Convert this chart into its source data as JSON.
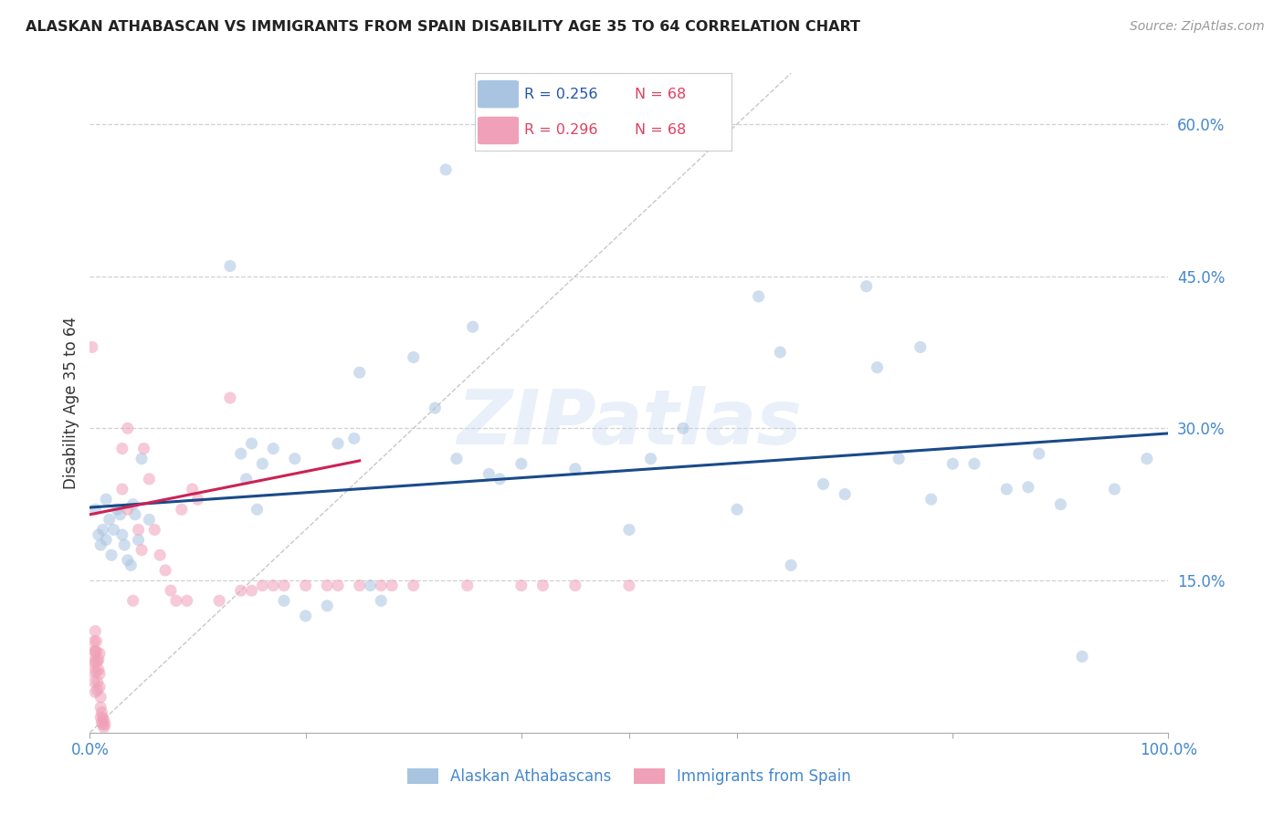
{
  "title": "ALASKAN ATHABASCAN VS IMMIGRANTS FROM SPAIN DISABILITY AGE 35 TO 64 CORRELATION CHART",
  "source": "Source: ZipAtlas.com",
  "ylabel": "Disability Age 35 to 64",
  "xlim": [
    0,
    1.0
  ],
  "ylim": [
    0,
    0.65
  ],
  "ytick_positions": [
    0.15,
    0.3,
    0.45,
    0.6
  ],
  "ytick_labels": [
    "15.0%",
    "30.0%",
    "45.0%",
    "60.0%"
  ],
  "watermark": "ZIPatlas",
  "blue_color": "#a8c4e0",
  "pink_color": "#f0a0b8",
  "blue_line_color": "#1a4a8a",
  "pink_line_color": "#cc2255",
  "diag_line_color": "#c8c8c8",
  "blue_R": "0.256",
  "blue_N": "68",
  "pink_R": "0.296",
  "pink_N": "68",
  "blue_scatter": [
    [
      0.005,
      0.22
    ],
    [
      0.008,
      0.195
    ],
    [
      0.01,
      0.185
    ],
    [
      0.012,
      0.2
    ],
    [
      0.015,
      0.23
    ],
    [
      0.015,
      0.19
    ],
    [
      0.018,
      0.21
    ],
    [
      0.02,
      0.175
    ],
    [
      0.022,
      0.2
    ],
    [
      0.025,
      0.22
    ],
    [
      0.028,
      0.215
    ],
    [
      0.03,
      0.195
    ],
    [
      0.032,
      0.185
    ],
    [
      0.035,
      0.17
    ],
    [
      0.038,
      0.165
    ],
    [
      0.04,
      0.225
    ],
    [
      0.042,
      0.215
    ],
    [
      0.045,
      0.19
    ],
    [
      0.048,
      0.27
    ],
    [
      0.055,
      0.21
    ],
    [
      0.13,
      0.46
    ],
    [
      0.14,
      0.275
    ],
    [
      0.145,
      0.25
    ],
    [
      0.15,
      0.285
    ],
    [
      0.155,
      0.22
    ],
    [
      0.16,
      0.265
    ],
    [
      0.17,
      0.28
    ],
    [
      0.18,
      0.13
    ],
    [
      0.19,
      0.27
    ],
    [
      0.2,
      0.115
    ],
    [
      0.22,
      0.125
    ],
    [
      0.23,
      0.285
    ],
    [
      0.245,
      0.29
    ],
    [
      0.25,
      0.355
    ],
    [
      0.26,
      0.145
    ],
    [
      0.27,
      0.13
    ],
    [
      0.3,
      0.37
    ],
    [
      0.32,
      0.32
    ],
    [
      0.33,
      0.555
    ],
    [
      0.34,
      0.27
    ],
    [
      0.355,
      0.4
    ],
    [
      0.37,
      0.255
    ],
    [
      0.38,
      0.25
    ],
    [
      0.4,
      0.265
    ],
    [
      0.45,
      0.26
    ],
    [
      0.5,
      0.2
    ],
    [
      0.52,
      0.27
    ],
    [
      0.55,
      0.3
    ],
    [
      0.6,
      0.22
    ],
    [
      0.62,
      0.43
    ],
    [
      0.64,
      0.375
    ],
    [
      0.65,
      0.165
    ],
    [
      0.68,
      0.245
    ],
    [
      0.7,
      0.235
    ],
    [
      0.72,
      0.44
    ],
    [
      0.73,
      0.36
    ],
    [
      0.75,
      0.27
    ],
    [
      0.77,
      0.38
    ],
    [
      0.78,
      0.23
    ],
    [
      0.8,
      0.265
    ],
    [
      0.82,
      0.265
    ],
    [
      0.85,
      0.24
    ],
    [
      0.87,
      0.242
    ],
    [
      0.88,
      0.275
    ],
    [
      0.9,
      0.225
    ],
    [
      0.92,
      0.075
    ],
    [
      0.95,
      0.24
    ],
    [
      0.98,
      0.27
    ]
  ],
  "pink_scatter": [
    [
      0.002,
      0.38
    ],
    [
      0.003,
      0.07
    ],
    [
      0.003,
      0.06
    ],
    [
      0.004,
      0.08
    ],
    [
      0.004,
      0.09
    ],
    [
      0.004,
      0.05
    ],
    [
      0.005,
      0.04
    ],
    [
      0.005,
      0.1
    ],
    [
      0.005,
      0.08
    ],
    [
      0.005,
      0.07
    ],
    [
      0.006,
      0.06
    ],
    [
      0.006,
      0.08
    ],
    [
      0.006,
      0.09
    ],
    [
      0.007,
      0.07
    ],
    [
      0.007,
      0.05
    ],
    [
      0.007,
      0.042
    ],
    [
      0.008,
      0.062
    ],
    [
      0.008,
      0.072
    ],
    [
      0.009,
      0.078
    ],
    [
      0.009,
      0.058
    ],
    [
      0.009,
      0.045
    ],
    [
      0.01,
      0.035
    ],
    [
      0.01,
      0.025
    ],
    [
      0.01,
      0.015
    ],
    [
      0.011,
      0.02
    ],
    [
      0.011,
      0.01
    ],
    [
      0.012,
      0.008
    ],
    [
      0.012,
      0.015
    ],
    [
      0.013,
      0.012
    ],
    [
      0.013,
      0.005
    ],
    [
      0.014,
      0.008
    ],
    [
      0.03,
      0.28
    ],
    [
      0.03,
      0.24
    ],
    [
      0.035,
      0.3
    ],
    [
      0.035,
      0.22
    ],
    [
      0.04,
      0.13
    ],
    [
      0.045,
      0.2
    ],
    [
      0.048,
      0.18
    ],
    [
      0.05,
      0.28
    ],
    [
      0.055,
      0.25
    ],
    [
      0.06,
      0.2
    ],
    [
      0.065,
      0.175
    ],
    [
      0.07,
      0.16
    ],
    [
      0.075,
      0.14
    ],
    [
      0.08,
      0.13
    ],
    [
      0.085,
      0.22
    ],
    [
      0.09,
      0.13
    ],
    [
      0.095,
      0.24
    ],
    [
      0.1,
      0.23
    ],
    [
      0.12,
      0.13
    ],
    [
      0.13,
      0.33
    ],
    [
      0.14,
      0.14
    ],
    [
      0.15,
      0.14
    ],
    [
      0.16,
      0.145
    ],
    [
      0.17,
      0.145
    ],
    [
      0.18,
      0.145
    ],
    [
      0.2,
      0.145
    ],
    [
      0.22,
      0.145
    ],
    [
      0.23,
      0.145
    ],
    [
      0.25,
      0.145
    ],
    [
      0.27,
      0.145
    ],
    [
      0.28,
      0.145
    ],
    [
      0.3,
      0.145
    ],
    [
      0.35,
      0.145
    ],
    [
      0.4,
      0.145
    ],
    [
      0.42,
      0.145
    ],
    [
      0.45,
      0.145
    ],
    [
      0.5,
      0.145
    ]
  ],
  "blue_line_x": [
    0.0,
    1.0
  ],
  "blue_line_y": [
    0.222,
    0.295
  ],
  "pink_line_x": [
    0.0,
    0.25
  ],
  "pink_line_y": [
    0.215,
    0.268
  ],
  "marker_size": 90,
  "alpha": 0.55
}
